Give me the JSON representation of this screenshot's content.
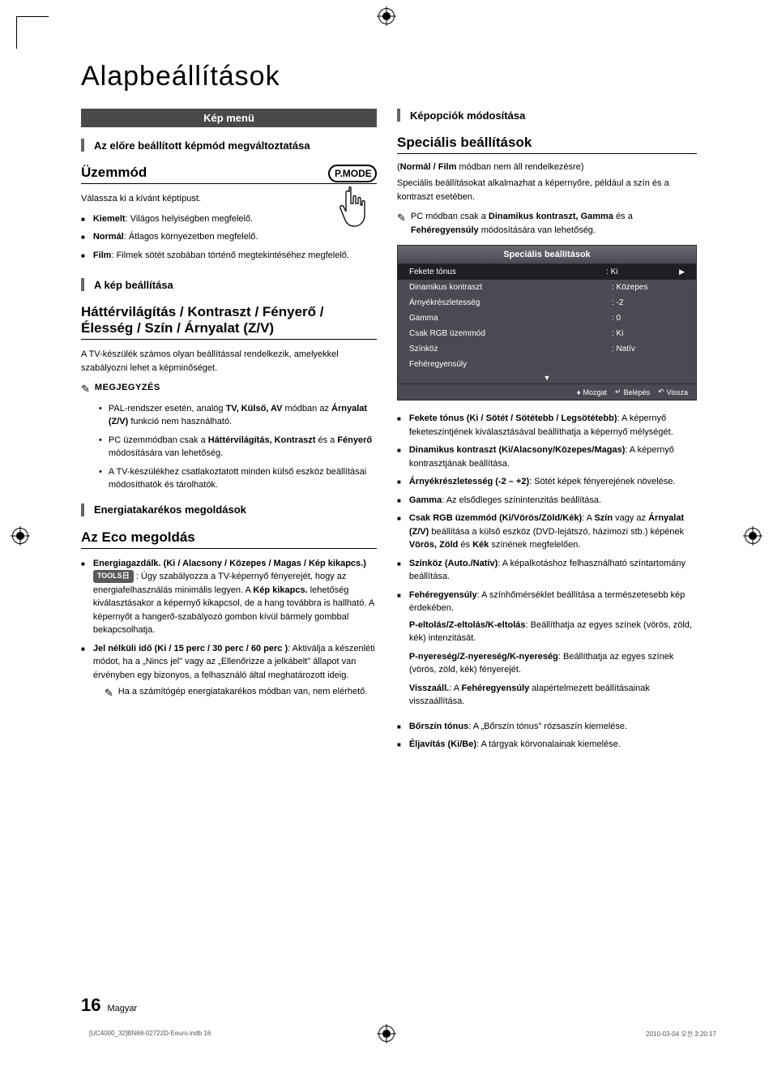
{
  "page": {
    "title": "Alapbeállítások",
    "number": "16",
    "language": "Magyar",
    "footer_file": "[UC4000_32]BN68-02722D-Eeuro.indb   16",
    "footer_date": "2010-03-04   오전 3:20:17"
  },
  "left": {
    "banner": "Kép menü",
    "sec1_title": "Az előre beállított képmód megváltoztatása",
    "mode_heading": "Üzemmód",
    "mode_intro": "Válassza ki a kívánt képtípust.",
    "pmode_label": "P.MODE",
    "modes": {
      "kiemelt_b": "Kiemelt",
      "kiemelt_t": ": Világos helyiségben megfelelő.",
      "normal_b": "Normál",
      "normal_t": ": Átlagos környezetben megfelelő.",
      "film_b": "Film",
      "film_t": ": Filmek sötét szobában történő megtekintéséhez megfelelő."
    },
    "sec2_title": "A kép beállítása",
    "adjust_heading": "Háttérvilágítás / Kontraszt / Fényerő / Élesség / Szín / Árnyalat (Z/V)",
    "adjust_intro": "A TV-készülék számos olyan beállítással rendelkezik, amelyekkel szabályozni lehet a képminőséget.",
    "note_label": "MEGJEGYZÉS",
    "note1_a": "PAL-rendszer esetén, analóg ",
    "note1_b": "TV, Külső, AV",
    "note1_c": " módban az ",
    "note1_d": "Árnyalat (Z/V)",
    "note1_e": " funkció nem használható.",
    "note2_a": "PC üzemmódban csak a ",
    "note2_b": "Háttérvilágítás, Kontraszt",
    "note2_c": " és a ",
    "note2_d": "Fényerő",
    "note2_e": " módosítására van lehetőség.",
    "note3": "A TV-készülékhez csatlakoztatott minden külső eszköz beállításai módosíthatók és tárolhatók.",
    "sec3_title": "Energiatakarékos megoldások",
    "eco_heading": "Az Eco megoldás",
    "eco1_b": "Energiagazdálk. (Ki / Alacsony / Közepes / Magas / Kép kikapcs.)",
    "tools": "TOOLS",
    "eco1_t1": ": Úgy szabályozza a TV-képernyő fényerejét, hogy az energiafelhasználás minimális legyen. A ",
    "eco1_t1b": "Kép kikapcs.",
    "eco1_t2": " lehetőség kiválasztásakor a képernyő kikapcsol, de a hang továbbra is hallható. A képernyőt a hangerő-szabályozó gombon kívül bármely gombbal bekapcsolhatja.",
    "eco2_b": "Jel nélküli idő (Ki / 15 perc / 30 perc / 60 perc )",
    "eco2_t": ": Aktiválja a készenléti módot, ha a „Nincs jel\" vagy az „Ellenőrizze a jelkábelt\" állapot van érvényben egy bizonyos, a felhasználó által meghatározott ideig.",
    "eco2_note": "Ha a számítógép energiatakarékos módban van, nem elérhető."
  },
  "right": {
    "sec4_title": "Képopciók módosítása",
    "spec_heading": "Speciális beállítások",
    "spec_paren_a": "(",
    "spec_paren_b": "Normál / Film",
    "spec_paren_c": " módban nem áll rendelkezésre)",
    "spec_intro": "Speciális beállításokat alkalmazhat a képernyőre, például a szín és a kontraszt esetében.",
    "spec_note_a": "PC módban csak a ",
    "spec_note_b": "Dinamikus kontraszt, Gamma",
    "spec_note_c": " és a ",
    "spec_note_d": "Fehéregyensúly",
    "spec_note_e": " módosítására van lehetőség.",
    "menu": {
      "title": "Speciális beállítások",
      "rows": [
        {
          "label": "Fekete tónus",
          "value": ": Ki",
          "selected": true,
          "arrow": true
        },
        {
          "label": "Dinamikus kontraszt",
          "value": ": Közepes"
        },
        {
          "label": "Árnyékrészletesség",
          "value": ": -2"
        },
        {
          "label": "Gamma",
          "value": ": 0"
        },
        {
          "label": "Csak RGB üzemmód",
          "value": ": Ki"
        },
        {
          "label": "Színköz",
          "value": ": Natív"
        },
        {
          "label": "Fehéregyensúly",
          "value": ""
        }
      ],
      "footer": {
        "move": "Mozgat",
        "enter": "Belépés",
        "return": "Vissza"
      }
    },
    "items": {
      "i1_b": "Fekete tónus (Ki / Sötét / Sötétebb / Legsötétebb)",
      "i1_t": ": A képernyő feketeszintjének kiválasztásával beállíthatja a képernyő mélységét.",
      "i2_b": "Dinamikus kontraszt (Ki/Alacsony/Közepes/Magas)",
      "i2_t": ": A képernyő kontrasztjának beállítása.",
      "i3_b": "Árnyékrészletesség (-2 – +2)",
      "i3_t": ": Sötét képek fényerejének növelése.",
      "i4_b": "Gamma",
      "i4_t": ": Az elsődleges színintenzitás beállítása.",
      "i5_b": "Csak RGB üzemmód (Ki/Vörös/Zöld/Kék)",
      "i5_t1": ": A ",
      "i5_t1b": "Szín",
      "i5_t2": " vagy az ",
      "i5_t2b": "Árnyalat (Z/V)",
      "i5_t3": " beállítása a külső eszköz (DVD-lejátszó, házimozi stb.) képének ",
      "i5_t3b": "Vörös, Zöld",
      "i5_t4": " és ",
      "i5_t4b": "Kék",
      "i5_t5": " színének megfelelően.",
      "i6_b": "Színköz (Auto./Natív)",
      "i6_t": ": A képalkotáshoz felhasználható színtartomány beállítása.",
      "i7_b": "Fehéregyensúly",
      "i7_t": ": A színhőmérséklet beállítása a természetesebb kép érdekében.",
      "i7_sub1_b": "P-eltolás/Z-eltolás/K-eltolás",
      "i7_sub1_t": ": Beállíthatja az egyes színek (vörös, zöld, kék) intenzitását.",
      "i7_sub2_b": "P-nyereség/Z-nyereség/K-nyereség",
      "i7_sub2_t": ": Beállíthatja az egyes színek (vörös, zöld, kék) fényerejét.",
      "i7_sub3_b": "Visszaáll.",
      "i7_sub3_t": ": A ",
      "i7_sub3_t2": "Fehéregyensúly",
      "i7_sub3_t3": " alapértelmezett beállításainak visszaállítása.",
      "i8_b": "Bőrszín tónus",
      "i8_t": ": A „Bőrszín tónus\" rózsaszín kiemelése.",
      "i9_b": "Éljavítás (Ki/Be)",
      "i9_t": ": A tárgyak körvonalainak kiemelése."
    }
  }
}
